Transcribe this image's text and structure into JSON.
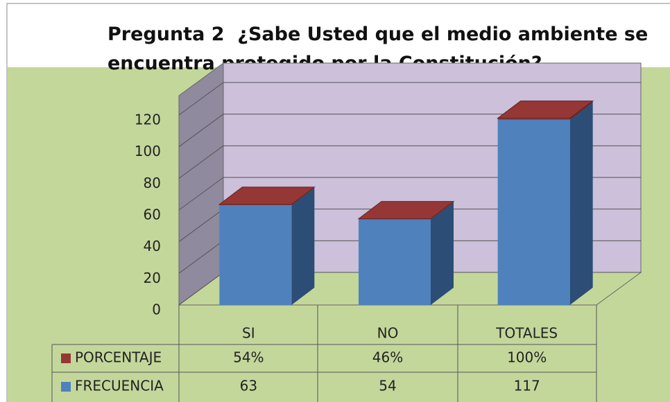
{
  "chart_data": {
    "type": "bar3d_stacked",
    "title": [
      "Pregunta 2  ¿Sabe Usted que el medio ambiente se",
      "encuentra protegido por la Constitución?"
    ],
    "categories": [
      "SI",
      "NO",
      "TOTALES"
    ],
    "series": [
      {
        "name": "FRECUENCIA",
        "color": "#4f81bd",
        "values": [
          63,
          54,
          117
        ]
      },
      {
        "name": "PORCENTAJE",
        "color": "#953735",
        "values": [
          0.54,
          0.46,
          1
        ],
        "value_labels": [
          "54%",
          "46%",
          "100%"
        ]
      }
    ],
    "ylim": [
      0,
      120
    ],
    "yticks": [
      0,
      20,
      40,
      60,
      80,
      100,
      120
    ],
    "grid": true
  }
}
